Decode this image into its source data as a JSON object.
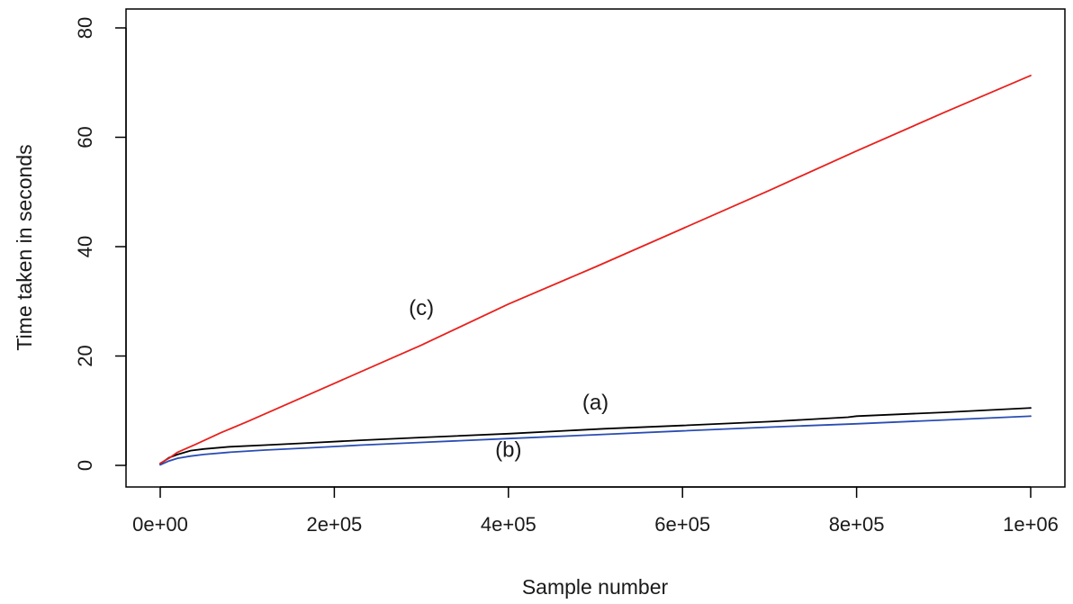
{
  "chart_data": {
    "type": "line",
    "title": "",
    "xlabel": "Sample number",
    "ylabel": "Time taken in seconds",
    "xlim": [
      0,
      1000000
    ],
    "ylim": [
      0,
      80
    ],
    "grid": false,
    "legend": "none",
    "x_ticks": [
      "0e+00",
      "2e+05",
      "4e+05",
      "6e+05",
      "8e+05",
      "1e+06"
    ],
    "x_tick_values": [
      0,
      200000,
      400000,
      600000,
      800000,
      1000000
    ],
    "y_ticks": [
      "0",
      "20",
      "40",
      "60",
      "80"
    ],
    "y_tick_values": [
      0,
      20,
      40,
      60,
      80
    ],
    "series": [
      {
        "label": "(a)",
        "color": "#000000",
        "x": [
          0,
          10000,
          20000,
          35000,
          50000,
          80000,
          120000,
          170000,
          230000,
          300000,
          400000,
          510000,
          600000,
          700000,
          790000,
          800000,
          900000,
          1000000
        ],
        "y": [
          0.3,
          1.4,
          2.0,
          2.7,
          3.0,
          3.4,
          3.7,
          4.1,
          4.6,
          5.1,
          5.8,
          6.7,
          7.3,
          8.0,
          8.8,
          9.0,
          9.7,
          10.5
        ]
      },
      {
        "label": "(b)",
        "color": "#2a4db3",
        "x": [
          0,
          10000,
          20000,
          35000,
          50000,
          80000,
          120000,
          170000,
          230000,
          300000,
          400000,
          500000,
          600000,
          700000,
          800000,
          900000,
          1000000
        ],
        "y": [
          0.1,
          0.8,
          1.3,
          1.7,
          2.0,
          2.4,
          2.8,
          3.2,
          3.7,
          4.2,
          4.9,
          5.6,
          6.3,
          7.0,
          7.6,
          8.3,
          9.0
        ]
      },
      {
        "label": "(c)",
        "color": "#e8201c",
        "x": [
          0,
          10000,
          20000,
          40000,
          70000,
          100000,
          200000,
          300000,
          400000,
          500000,
          600000,
          700000,
          800000,
          900000,
          1000000
        ],
        "y": [
          0.4,
          1.3,
          2.4,
          3.8,
          6.0,
          8.0,
          15.0,
          22.0,
          29.5,
          36.3,
          43.3,
          50.3,
          57.5,
          64.5,
          71.3
        ]
      }
    ],
    "annotations": [
      {
        "text": "(a)",
        "x": 500000,
        "y": 10.2
      },
      {
        "text": "(b)",
        "x": 400000,
        "y": 1.6
      },
      {
        "text": "(c)",
        "x": 300000,
        "y": 27.5
      }
    ]
  }
}
